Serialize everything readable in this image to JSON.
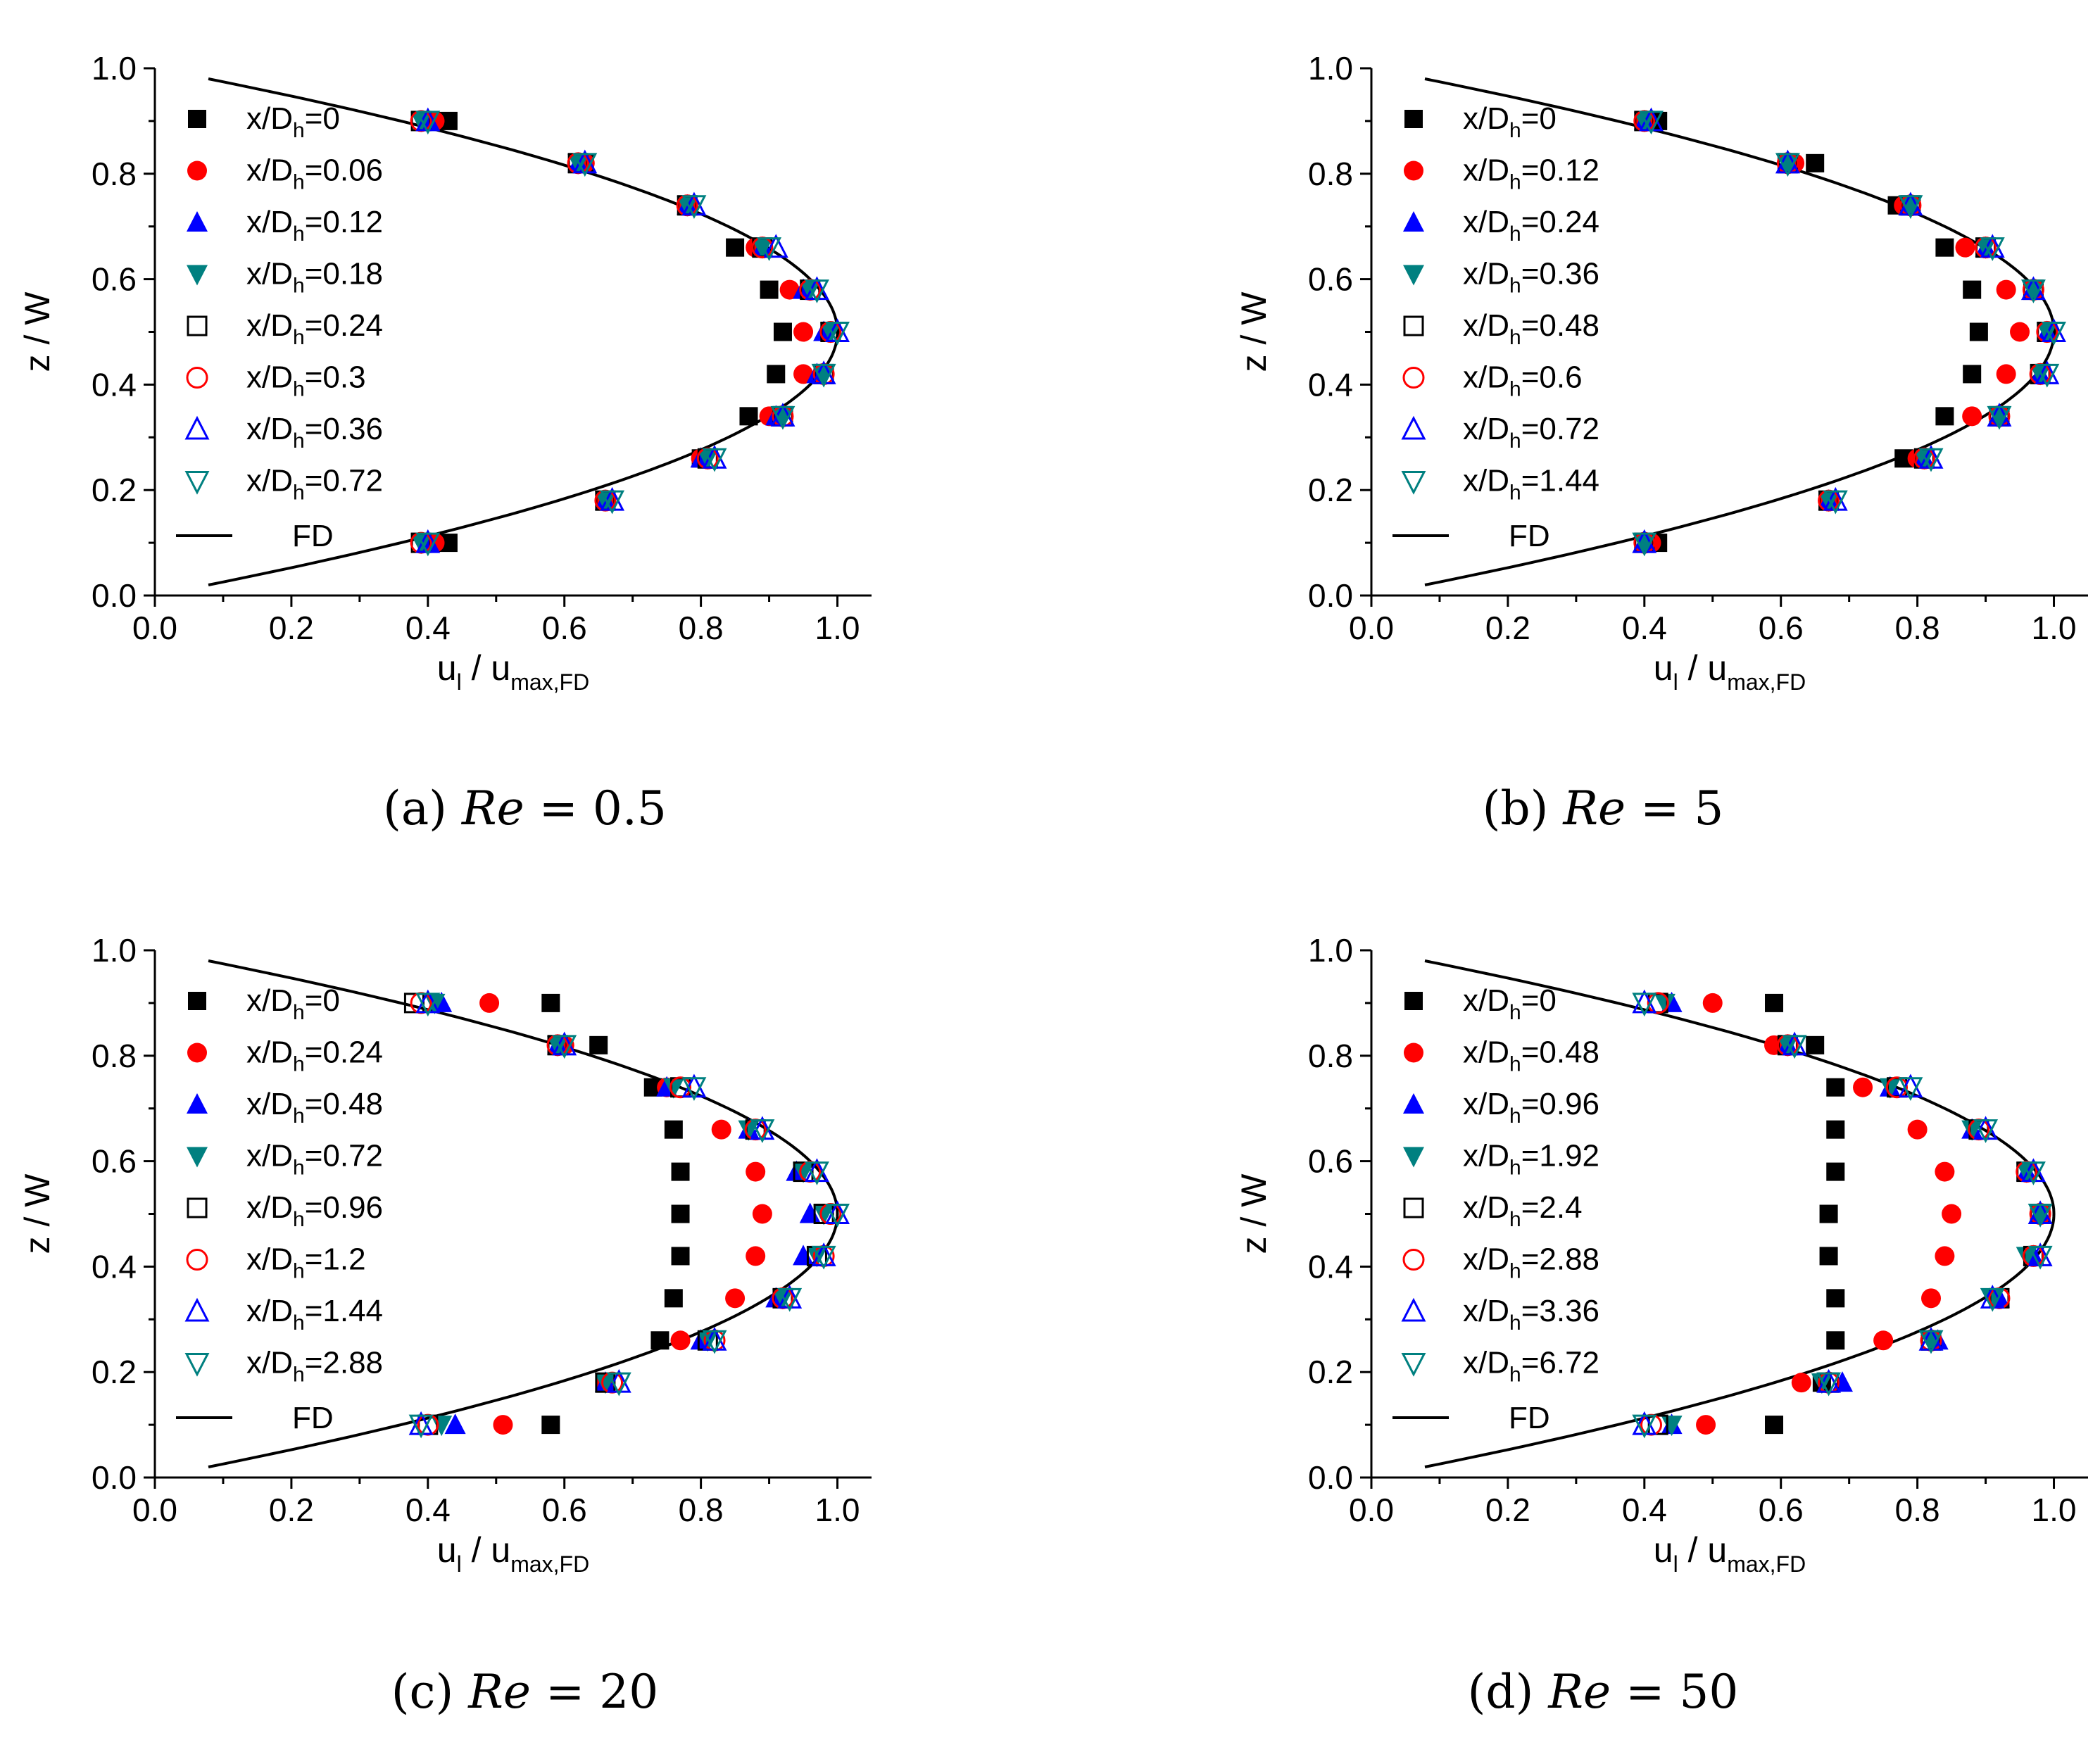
{
  "chart_data": [
    {
      "type": "scatter",
      "panel_label": "(a)",
      "caption": {
        "prefix": "(a) ",
        "re": "Re",
        "suffix": " = 0.5"
      },
      "x_range": [
        0.0,
        1.05
      ],
      "y_range": [
        0.0,
        1.0
      ],
      "x_ticks": [
        "0.0",
        "0.2",
        "0.4",
        "0.6",
        "0.8",
        "1.0"
      ],
      "y_ticks": [
        "0.0",
        "0.2",
        "0.4",
        "0.6",
        "0.8",
        "1.0"
      ],
      "legend_position": "top-left",
      "z_values": [
        0.1,
        0.18,
        0.26,
        0.34,
        0.42,
        0.5,
        0.58,
        0.66,
        0.74,
        0.82,
        0.9
      ],
      "series": [
        {
          "label_value": "0",
          "marker": "square-filled",
          "color": "#000000",
          "values": [
            0.43,
            0.66,
            0.8,
            0.87,
            0.91,
            0.92,
            0.9,
            0.85,
            0.78,
            0.63,
            0.43
          ]
        },
        {
          "label_value": "0.06",
          "marker": "circle-filled",
          "color": "#ff0000",
          "values": [
            0.41,
            0.66,
            0.8,
            0.9,
            0.95,
            0.95,
            0.93,
            0.88,
            0.78,
            0.63,
            0.41
          ]
        },
        {
          "label_value": "0.12",
          "marker": "triangle-up-filled",
          "color": "#0000ff",
          "values": [
            0.4,
            0.66,
            0.8,
            0.91,
            0.97,
            0.98,
            0.95,
            0.89,
            0.78,
            0.62,
            0.4
          ]
        },
        {
          "label_value": "0.18",
          "marker": "triangle-down-filled",
          "color": "#008080",
          "values": [
            0.39,
            0.66,
            0.81,
            0.92,
            0.98,
            0.99,
            0.96,
            0.89,
            0.78,
            0.62,
            0.39
          ]
        },
        {
          "label_value": "0.24",
          "marker": "square-open",
          "color": "#000000",
          "values": [
            0.39,
            0.66,
            0.81,
            0.92,
            0.98,
            0.99,
            0.96,
            0.89,
            0.78,
            0.62,
            0.39
          ]
        },
        {
          "label_value": "0.3",
          "marker": "circle-open",
          "color": "#ff0000",
          "values": [
            0.39,
            0.66,
            0.81,
            0.92,
            0.98,
            0.99,
            0.96,
            0.89,
            0.78,
            0.62,
            0.39
          ]
        },
        {
          "label_value": "0.36",
          "marker": "triangle-up-open",
          "color": "#0000ff",
          "values": [
            0.4,
            0.67,
            0.82,
            0.92,
            0.98,
            1.0,
            0.97,
            0.91,
            0.79,
            0.63,
            0.4
          ]
        },
        {
          "label_value": "0.72",
          "marker": "triangle-down-open",
          "color": "#008080",
          "values": [
            0.4,
            0.67,
            0.82,
            0.92,
            0.98,
            1.0,
            0.97,
            0.9,
            0.79,
            0.63,
            0.4
          ]
        }
      ],
      "fd_label": "FD"
    },
    {
      "type": "scatter",
      "panel_label": "(b)",
      "caption": {
        "prefix": "(b) ",
        "re": "Re",
        "suffix": " = 5"
      },
      "x_range": [
        0.0,
        1.05
      ],
      "y_range": [
        0.0,
        1.0
      ],
      "x_ticks": [
        "0.0",
        "0.2",
        "0.4",
        "0.6",
        "0.8",
        "1.0"
      ],
      "y_ticks": [
        "0.0",
        "0.2",
        "0.4",
        "0.6",
        "0.8",
        "1.0"
      ],
      "legend_position": "top-left",
      "z_values": [
        0.1,
        0.18,
        0.26,
        0.34,
        0.42,
        0.5,
        0.58,
        0.66,
        0.74,
        0.82,
        0.9
      ],
      "series": [
        {
          "label_value": "0",
          "marker": "square-filled",
          "color": "#000000",
          "values": [
            0.42,
            0.67,
            0.78,
            0.84,
            0.88,
            0.89,
            0.88,
            0.84,
            0.77,
            0.65,
            0.42
          ]
        },
        {
          "label_value": "0.12",
          "marker": "circle-filled",
          "color": "#ff0000",
          "values": [
            0.41,
            0.67,
            0.8,
            0.88,
            0.93,
            0.95,
            0.93,
            0.87,
            0.78,
            0.62,
            0.4
          ]
        },
        {
          "label_value": "0.24",
          "marker": "triangle-up-filled",
          "color": "#0000ff",
          "values": [
            0.4,
            0.67,
            0.81,
            0.92,
            0.98,
            0.99,
            0.97,
            0.9,
            0.79,
            0.61,
            0.4
          ]
        },
        {
          "label_value": "0.36",
          "marker": "triangle-down-filled",
          "color": "#008080",
          "values": [
            0.4,
            0.67,
            0.81,
            0.92,
            0.98,
            0.99,
            0.97,
            0.9,
            0.79,
            0.61,
            0.4
          ]
        },
        {
          "label_value": "0.48",
          "marker": "square-open",
          "color": "#000000",
          "values": [
            0.4,
            0.67,
            0.81,
            0.92,
            0.98,
            0.99,
            0.97,
            0.9,
            0.79,
            0.61,
            0.4
          ]
        },
        {
          "label_value": "0.6",
          "marker": "circle-open",
          "color": "#ff0000",
          "values": [
            0.4,
            0.67,
            0.81,
            0.92,
            0.98,
            0.99,
            0.97,
            0.9,
            0.79,
            0.61,
            0.4
          ]
        },
        {
          "label_value": "0.72",
          "marker": "triangle-up-open",
          "color": "#0000ff",
          "values": [
            0.4,
            0.68,
            0.82,
            0.92,
            0.99,
            1.0,
            0.97,
            0.91,
            0.79,
            0.61,
            0.41
          ]
        },
        {
          "label_value": "1.44",
          "marker": "triangle-down-open",
          "color": "#008080",
          "values": [
            0.4,
            0.68,
            0.82,
            0.92,
            0.99,
            1.0,
            0.97,
            0.91,
            0.79,
            0.61,
            0.41
          ]
        }
      ],
      "fd_label": "FD"
    },
    {
      "type": "scatter",
      "panel_label": "(c)",
      "caption": {
        "prefix": "(c) ",
        "re": "Re",
        "suffix": " = 20"
      },
      "x_range": [
        0.0,
        1.05
      ],
      "y_range": [
        0.0,
        1.0
      ],
      "x_ticks": [
        "0.0",
        "0.2",
        "0.4",
        "0.6",
        "0.8",
        "1.0"
      ],
      "y_ticks": [
        "0.0",
        "0.2",
        "0.4",
        "0.6",
        "0.8",
        "1.0"
      ],
      "legend_position": "top-left",
      "z_values": [
        0.1,
        0.18,
        0.26,
        0.34,
        0.42,
        0.5,
        0.58,
        0.66,
        0.74,
        0.82,
        0.9
      ],
      "series": [
        {
          "label_value": "0",
          "marker": "square-filled",
          "color": "#000000",
          "values": [
            0.58,
            0.66,
            0.74,
            0.76,
            0.77,
            0.77,
            0.77,
            0.76,
            0.73,
            0.65,
            0.58
          ]
        },
        {
          "label_value": "0.24",
          "marker": "circle-filled",
          "color": "#ff0000",
          "values": [
            0.51,
            0.66,
            0.77,
            0.85,
            0.88,
            0.89,
            0.88,
            0.83,
            0.75,
            0.6,
            0.49
          ]
        },
        {
          "label_value": "0.48",
          "marker": "triangle-up-filled",
          "color": "#0000ff",
          "values": [
            0.44,
            0.66,
            0.8,
            0.91,
            0.95,
            0.96,
            0.94,
            0.87,
            0.75,
            0.59,
            0.42
          ]
        },
        {
          "label_value": "0.72",
          "marker": "triangle-down-filled",
          "color": "#008080",
          "values": [
            0.42,
            0.66,
            0.81,
            0.92,
            0.97,
            0.98,
            0.95,
            0.87,
            0.76,
            0.59,
            0.41
          ]
        },
        {
          "label_value": "0.96",
          "marker": "square-open",
          "color": "#000000",
          "values": [
            0.4,
            0.66,
            0.81,
            0.92,
            0.97,
            0.98,
            0.95,
            0.88,
            0.77,
            0.59,
            0.38
          ]
        },
        {
          "label_value": "1.2",
          "marker": "circle-open",
          "color": "#ff0000",
          "values": [
            0.4,
            0.67,
            0.82,
            0.92,
            0.98,
            0.99,
            0.96,
            0.88,
            0.77,
            0.59,
            0.39
          ]
        },
        {
          "label_value": "1.44",
          "marker": "triangle-up-open",
          "color": "#0000ff",
          "values": [
            0.39,
            0.68,
            0.82,
            0.93,
            0.98,
            1.0,
            0.97,
            0.89,
            0.79,
            0.6,
            0.4
          ]
        },
        {
          "label_value": "2.88",
          "marker": "triangle-down-open",
          "color": "#008080",
          "values": [
            0.39,
            0.68,
            0.82,
            0.93,
            0.98,
            1.0,
            0.97,
            0.89,
            0.79,
            0.6,
            0.4
          ]
        }
      ],
      "fd_label": "FD"
    },
    {
      "type": "scatter",
      "panel_label": "(d)",
      "caption": {
        "prefix": "(d) ",
        "re": "Re",
        "suffix": " = 50"
      },
      "x_range": [
        0.0,
        1.05
      ],
      "y_range": [
        0.0,
        1.0
      ],
      "x_ticks": [
        "0.0",
        "0.2",
        "0.4",
        "0.6",
        "0.8",
        "1.0"
      ],
      "y_ticks": [
        "0.0",
        "0.2",
        "0.4",
        "0.6",
        "0.8",
        "1.0"
      ],
      "legend_position": "top-left",
      "z_values": [
        0.1,
        0.18,
        0.26,
        0.34,
        0.42,
        0.5,
        0.58,
        0.66,
        0.74,
        0.82,
        0.9
      ],
      "series": [
        {
          "label_value": "0",
          "marker": "square-filled",
          "color": "#000000",
          "values": [
            0.59,
            0.66,
            0.68,
            0.68,
            0.67,
            0.67,
            0.68,
            0.68,
            0.68,
            0.65,
            0.59
          ]
        },
        {
          "label_value": "0.48",
          "marker": "circle-filled",
          "color": "#ff0000",
          "values": [
            0.49,
            0.63,
            0.75,
            0.82,
            0.84,
            0.85,
            0.84,
            0.8,
            0.72,
            0.59,
            0.5
          ]
        },
        {
          "label_value": "0.96",
          "marker": "triangle-up-filled",
          "color": "#0000ff",
          "values": [
            0.44,
            0.69,
            0.83,
            0.92,
            0.97,
            0.98,
            0.96,
            0.88,
            0.76,
            0.61,
            0.44
          ]
        },
        {
          "label_value": "1.92",
          "marker": "triangle-down-filled",
          "color": "#008080",
          "values": [
            0.44,
            0.66,
            0.82,
            0.91,
            0.96,
            0.98,
            0.96,
            0.88,
            0.76,
            0.61,
            0.43
          ]
        },
        {
          "label_value": "2.4",
          "marker": "square-open",
          "color": "#000000",
          "values": [
            0.42,
            0.67,
            0.82,
            0.92,
            0.97,
            0.98,
            0.96,
            0.89,
            0.77,
            0.61,
            0.42
          ]
        },
        {
          "label_value": "2.88",
          "marker": "circle-open",
          "color": "#ff0000",
          "values": [
            0.41,
            0.67,
            0.82,
            0.92,
            0.97,
            0.98,
            0.96,
            0.89,
            0.77,
            0.61,
            0.42
          ]
        },
        {
          "label_value": "3.36",
          "marker": "triangle-up-open",
          "color": "#0000ff",
          "values": [
            0.4,
            0.67,
            0.82,
            0.91,
            0.98,
            0.98,
            0.97,
            0.9,
            0.79,
            0.62,
            0.4
          ]
        },
        {
          "label_value": "6.72",
          "marker": "triangle-down-open",
          "color": "#008080",
          "values": [
            0.4,
            0.67,
            0.82,
            0.91,
            0.98,
            0.98,
            0.97,
            0.9,
            0.79,
            0.62,
            0.4
          ]
        }
      ],
      "fd_label": "FD"
    }
  ],
  "axis_text": {
    "y_label": "z / W",
    "x_label_main": "u",
    "x_label_sub1": "l",
    "x_label_mid": " / u",
    "x_label_sub2": "max,FD",
    "legend_prefix": "x/D",
    "legend_sub": "h",
    "legend_eq": "="
  },
  "fd_curve": {
    "description_free": true,
    "z_range": [
      0.02,
      0.98
    ]
  },
  "colors": {
    "black": "#000000",
    "red": "#ff0000",
    "blue": "#0000ff",
    "teal": "#008080"
  }
}
